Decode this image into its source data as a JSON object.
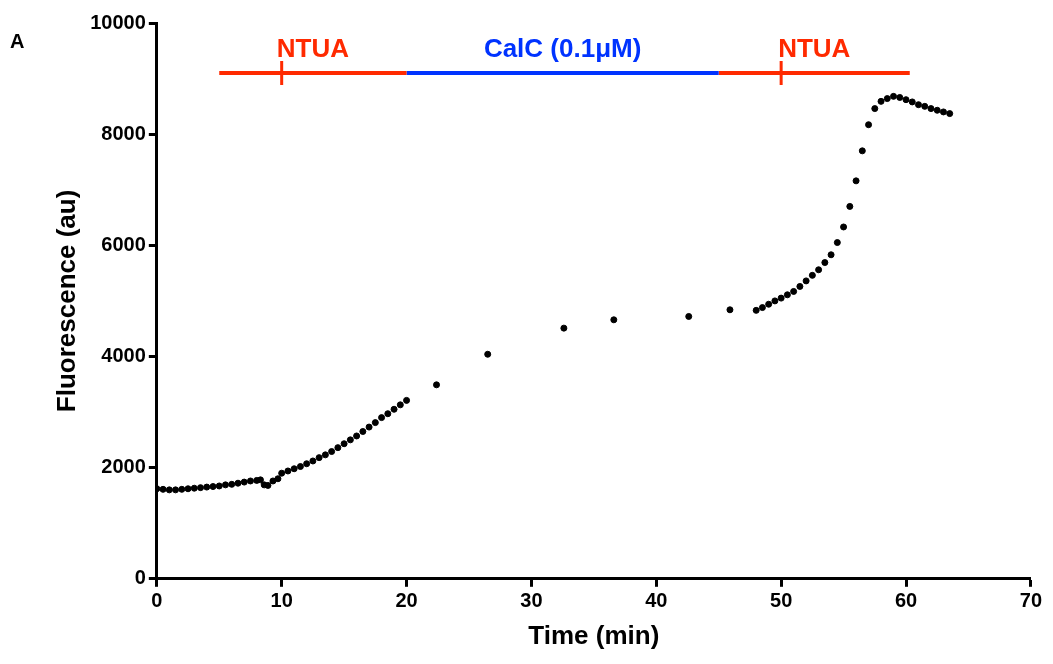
{
  "chart_data": {
    "type": "scatter",
    "xlabel": "Time (min)",
    "ylabel": "Fluorescence (au)",
    "annotations": [
      "A"
    ],
    "xlim": [
      0,
      70
    ],
    "xticks": [
      0,
      10,
      20,
      30,
      40,
      50,
      60,
      70
    ],
    "ylim": [
      0,
      10000
    ],
    "yticks": [
      0,
      2000,
      4000,
      6000,
      8000,
      10000
    ],
    "grid": false,
    "legend": false,
    "series": [
      {
        "color": "#000000",
        "marker": "circle",
        "x": [
          0,
          0.5,
          1,
          1.5,
          2,
          2.5,
          3,
          3.5,
          4,
          4.5,
          5,
          5.5,
          6,
          6.5,
          7,
          7.5,
          8,
          8.3,
          8.6,
          8.9,
          9.3,
          9.7,
          10,
          10.5,
          11,
          11.5,
          12,
          12.5,
          13,
          13.5,
          14,
          14.5,
          15,
          15.5,
          16,
          16.5,
          17,
          17.5,
          18,
          18.5,
          19,
          19.5,
          20,
          22.4,
          26.5,
          32.6,
          36.6,
          42.6,
          45.9,
          48,
          48.5,
          49,
          49.5,
          50,
          50.5,
          51,
          51.5,
          52,
          52.5,
          53,
          53.5,
          54,
          54.5,
          55,
          55.5,
          56,
          56.5,
          57,
          57.5,
          58,
          58.5,
          59,
          59.5,
          60,
          60.5,
          61,
          61.5,
          62,
          62.5,
          63,
          63.5
        ],
        "values": [
          1620,
          1610,
          1600,
          1600,
          1610,
          1620,
          1630,
          1640,
          1650,
          1660,
          1670,
          1690,
          1700,
          1720,
          1740,
          1760,
          1770,
          1780,
          1690,
          1680,
          1760,
          1800,
          1900,
          1940,
          1980,
          2020,
          2070,
          2120,
          2180,
          2230,
          2290,
          2360,
          2430,
          2500,
          2570,
          2650,
          2730,
          2810,
          2900,
          2970,
          3050,
          3130,
          3210,
          3490,
          4040,
          4510,
          4660,
          4720,
          4840,
          4830,
          4880,
          4940,
          5000,
          5050,
          5110,
          5170,
          5260,
          5360,
          5460,
          5560,
          5690,
          5830,
          6050,
          6330,
          6700,
          7160,
          7700,
          8170,
          8460,
          8590,
          8640,
          8680,
          8660,
          8620,
          8580,
          8530,
          8500,
          8460,
          8430,
          8400,
          8370
        ]
      },
      {
        "type": "line",
        "name": "NTUA",
        "color": "#ff2a00",
        "x": [
          5,
          10,
          20
        ],
        "values": [
          9100,
          9100,
          9100
        ]
      },
      {
        "type": "line",
        "name": "CalC (0.1μM)",
        "color": "#0033ff",
        "x": [
          20,
          45
        ],
        "values": [
          9100,
          9100
        ]
      },
      {
        "type": "line",
        "name": "NTUA",
        "color": "#ff2a00",
        "x": [
          45,
          50,
          60.3
        ],
        "values": [
          9100,
          9100,
          9100
        ]
      }
    ]
  }
}
